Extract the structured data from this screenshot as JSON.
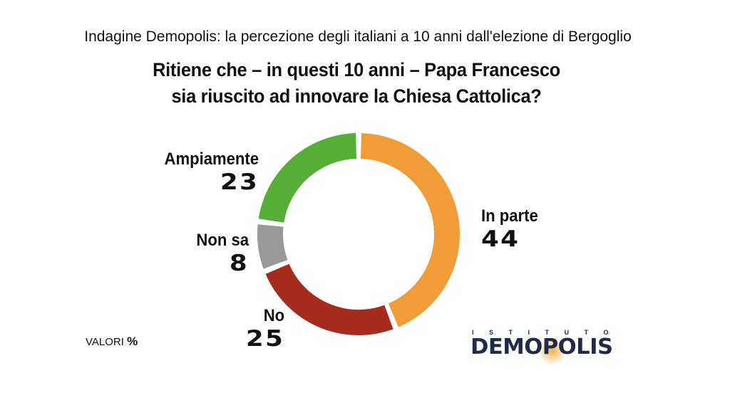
{
  "subtitle": "Indagine Demopolis: la percezione degli italiani a 10 anni dall'elezione di Bergoglio",
  "question": {
    "line1": "Ritiene che – in questi 10 anni – Papa Francesco",
    "line2": "sia riuscito ad innovare la Chiesa Cattolica?"
  },
  "chart_data": {
    "type": "pie",
    "style": "donut",
    "title": "Ritiene che – in questi 10 anni – Papa Francesco sia riuscito ad innovare la Chiesa Cattolica?",
    "unit": "%",
    "slices": [
      {
        "label": "In parte",
        "value": 44,
        "color": "#f09c38"
      },
      {
        "label": "No",
        "value": 25,
        "color": "#a62d1d"
      },
      {
        "label": "Non sa",
        "value": 8,
        "color": "#999999"
      },
      {
        "label": "Ampiamente",
        "value": 23,
        "color": "#56ad37"
      }
    ]
  },
  "labels": {
    "ampiamente": {
      "name": "Ampiamente",
      "value": "23"
    },
    "non_sa": {
      "name": "Non sa",
      "value": "8"
    },
    "no": {
      "name": "No",
      "value": "25"
    },
    "in_parte": {
      "name": "In parte",
      "value": "44"
    }
  },
  "footer": {
    "valori": "VALORI",
    "percent": "%"
  },
  "logo": {
    "istituto": "ISTITUTO",
    "brand": "DEMOPOLIS"
  }
}
